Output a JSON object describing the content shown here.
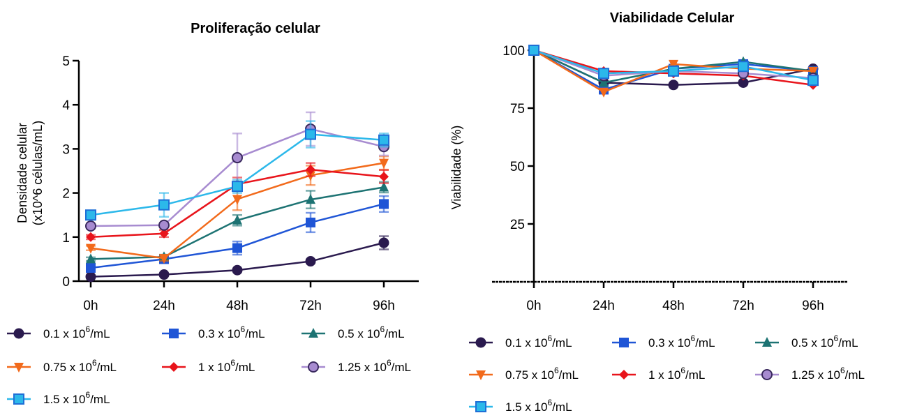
{
  "chart_data": [
    {
      "type": "line",
      "title": "Proliferação celular",
      "xlabel": "",
      "ylabel": "Densidade celular",
      "ylabel2": "(x10^6 células/mL)",
      "categories": [
        "0h",
        "24h",
        "48h",
        "72h",
        "96h"
      ],
      "ylim": [
        0,
        5
      ],
      "yticks": [
        0,
        1,
        2,
        3,
        4,
        5
      ],
      "grid": false,
      "legend_position": "bottom",
      "series": [
        {
          "name": "0.1 x 10^6/mL",
          "base": "0.1 x 10",
          "sup": "6",
          "unit": "/mL",
          "color": "#2a1a4e",
          "marker": "circle",
          "values": [
            0.1,
            0.15,
            0.25,
            0.45,
            0.87
          ],
          "errors": [
            0.02,
            0.02,
            0.03,
            0.04,
            0.15
          ]
        },
        {
          "name": "0.3 x 10^6/mL",
          "base": "0.3 x 10",
          "sup": "6",
          "unit": "/mL",
          "color": "#1f55d6",
          "marker": "square",
          "values": [
            0.3,
            0.5,
            0.75,
            1.33,
            1.75
          ],
          "errors": [
            0.04,
            0.06,
            0.15,
            0.22,
            0.18
          ]
        },
        {
          "name": "0.5 x 10^6/mL",
          "base": "0.5 x 10",
          "sup": "6",
          "unit": "/mL",
          "color": "#1d7373",
          "marker": "triangle-up",
          "values": [
            0.5,
            0.55,
            1.38,
            1.85,
            2.13
          ],
          "errors": [
            0.04,
            0.05,
            0.12,
            0.2,
            0.12
          ]
        },
        {
          "name": "0.75 x 10^6/mL",
          "base": "0.75 x 10",
          "sup": "6",
          "unit": "/mL",
          "color": "#f26a1b",
          "marker": "triangle-down",
          "values": [
            0.75,
            0.52,
            1.86,
            2.4,
            2.68
          ],
          "errors": [
            0.05,
            0.06,
            0.25,
            0.22,
            0.15
          ]
        },
        {
          "name": "1 x 10^6/mL",
          "base": "1 x 10",
          "sup": "6",
          "unit": "/mL",
          "color": "#e8141b",
          "marker": "diamond",
          "values": [
            1.0,
            1.08,
            2.2,
            2.53,
            2.37
          ],
          "errors": [
            0.05,
            0.08,
            0.15,
            0.15,
            0.15
          ]
        },
        {
          "name": "1.25 x 10^6/mL",
          "base": "1.25 x 10",
          "sup": "6",
          "unit": "/mL",
          "color": "#a78bd0",
          "marker": "circle-outline",
          "values": [
            1.25,
            1.27,
            2.8,
            3.45,
            3.05
          ],
          "errors": [
            0.04,
            0.05,
            0.55,
            0.38,
            0.2
          ]
        },
        {
          "name": "1.5 x 10^6/mL",
          "base": "1.5 x 10",
          "sup": "6",
          "unit": "/mL",
          "color": "#2cb8ea",
          "marker": "square-outline",
          "values": [
            1.5,
            1.73,
            2.15,
            3.33,
            3.2
          ],
          "errors": [
            0.05,
            0.27,
            0.15,
            0.3,
            0.15
          ]
        }
      ]
    },
    {
      "type": "line",
      "title": "Viabilidade Celular",
      "xlabel": "",
      "ylabel": "Viabilidade (%)",
      "categories": [
        "0h",
        "24h",
        "48h",
        "72h",
        "96h"
      ],
      "ylim": [
        0,
        100
      ],
      "yticks": [
        25,
        50,
        75,
        100
      ],
      "baseline": 0,
      "grid": false,
      "legend_position": "bottom",
      "series": [
        {
          "name": "0.1 x 10^6/mL",
          "base": "0.1 x 10",
          "sup": "6",
          "unit": "/mL",
          "color": "#2a1a4e",
          "marker": "circle",
          "values": [
            100,
            86,
            85,
            86,
            92
          ]
        },
        {
          "name": "0.3 x 10^6/mL",
          "base": "0.3 x 10",
          "sup": "6",
          "unit": "/mL",
          "color": "#1f55d6",
          "marker": "square",
          "values": [
            100,
            83,
            92,
            94,
            91
          ]
        },
        {
          "name": "0.5 x 10^6/mL",
          "base": "0.5 x 10",
          "sup": "6",
          "unit": "/mL",
          "color": "#1d7373",
          "marker": "triangle-up",
          "values": [
            100,
            86,
            92,
            95,
            91
          ]
        },
        {
          "name": "0.75 x 10^6/mL",
          "base": "0.75 x 10",
          "sup": "6",
          "unit": "/mL",
          "color": "#f26a1b",
          "marker": "triangle-down",
          "values": [
            100,
            82,
            94,
            92,
            91
          ]
        },
        {
          "name": "1 x 10^6/mL",
          "base": "1 x 10",
          "sup": "6",
          "unit": "/mL",
          "color": "#e8141b",
          "marker": "diamond",
          "values": [
            100,
            91,
            90,
            89,
            85
          ]
        },
        {
          "name": "1.25 x 10^6/mL",
          "base": "1.25 x 10",
          "sup": "6",
          "unit": "/mL",
          "color": "#a78bd0",
          "marker": "circle-outline",
          "values": [
            100,
            89,
            91,
            90,
            88
          ]
        },
        {
          "name": "1.5 x 10^6/mL",
          "base": "1.5 x 10",
          "sup": "6",
          "unit": "/mL",
          "color": "#2cb8ea",
          "marker": "square-outline",
          "values": [
            100,
            90,
            91,
            93,
            87
          ]
        }
      ]
    }
  ]
}
